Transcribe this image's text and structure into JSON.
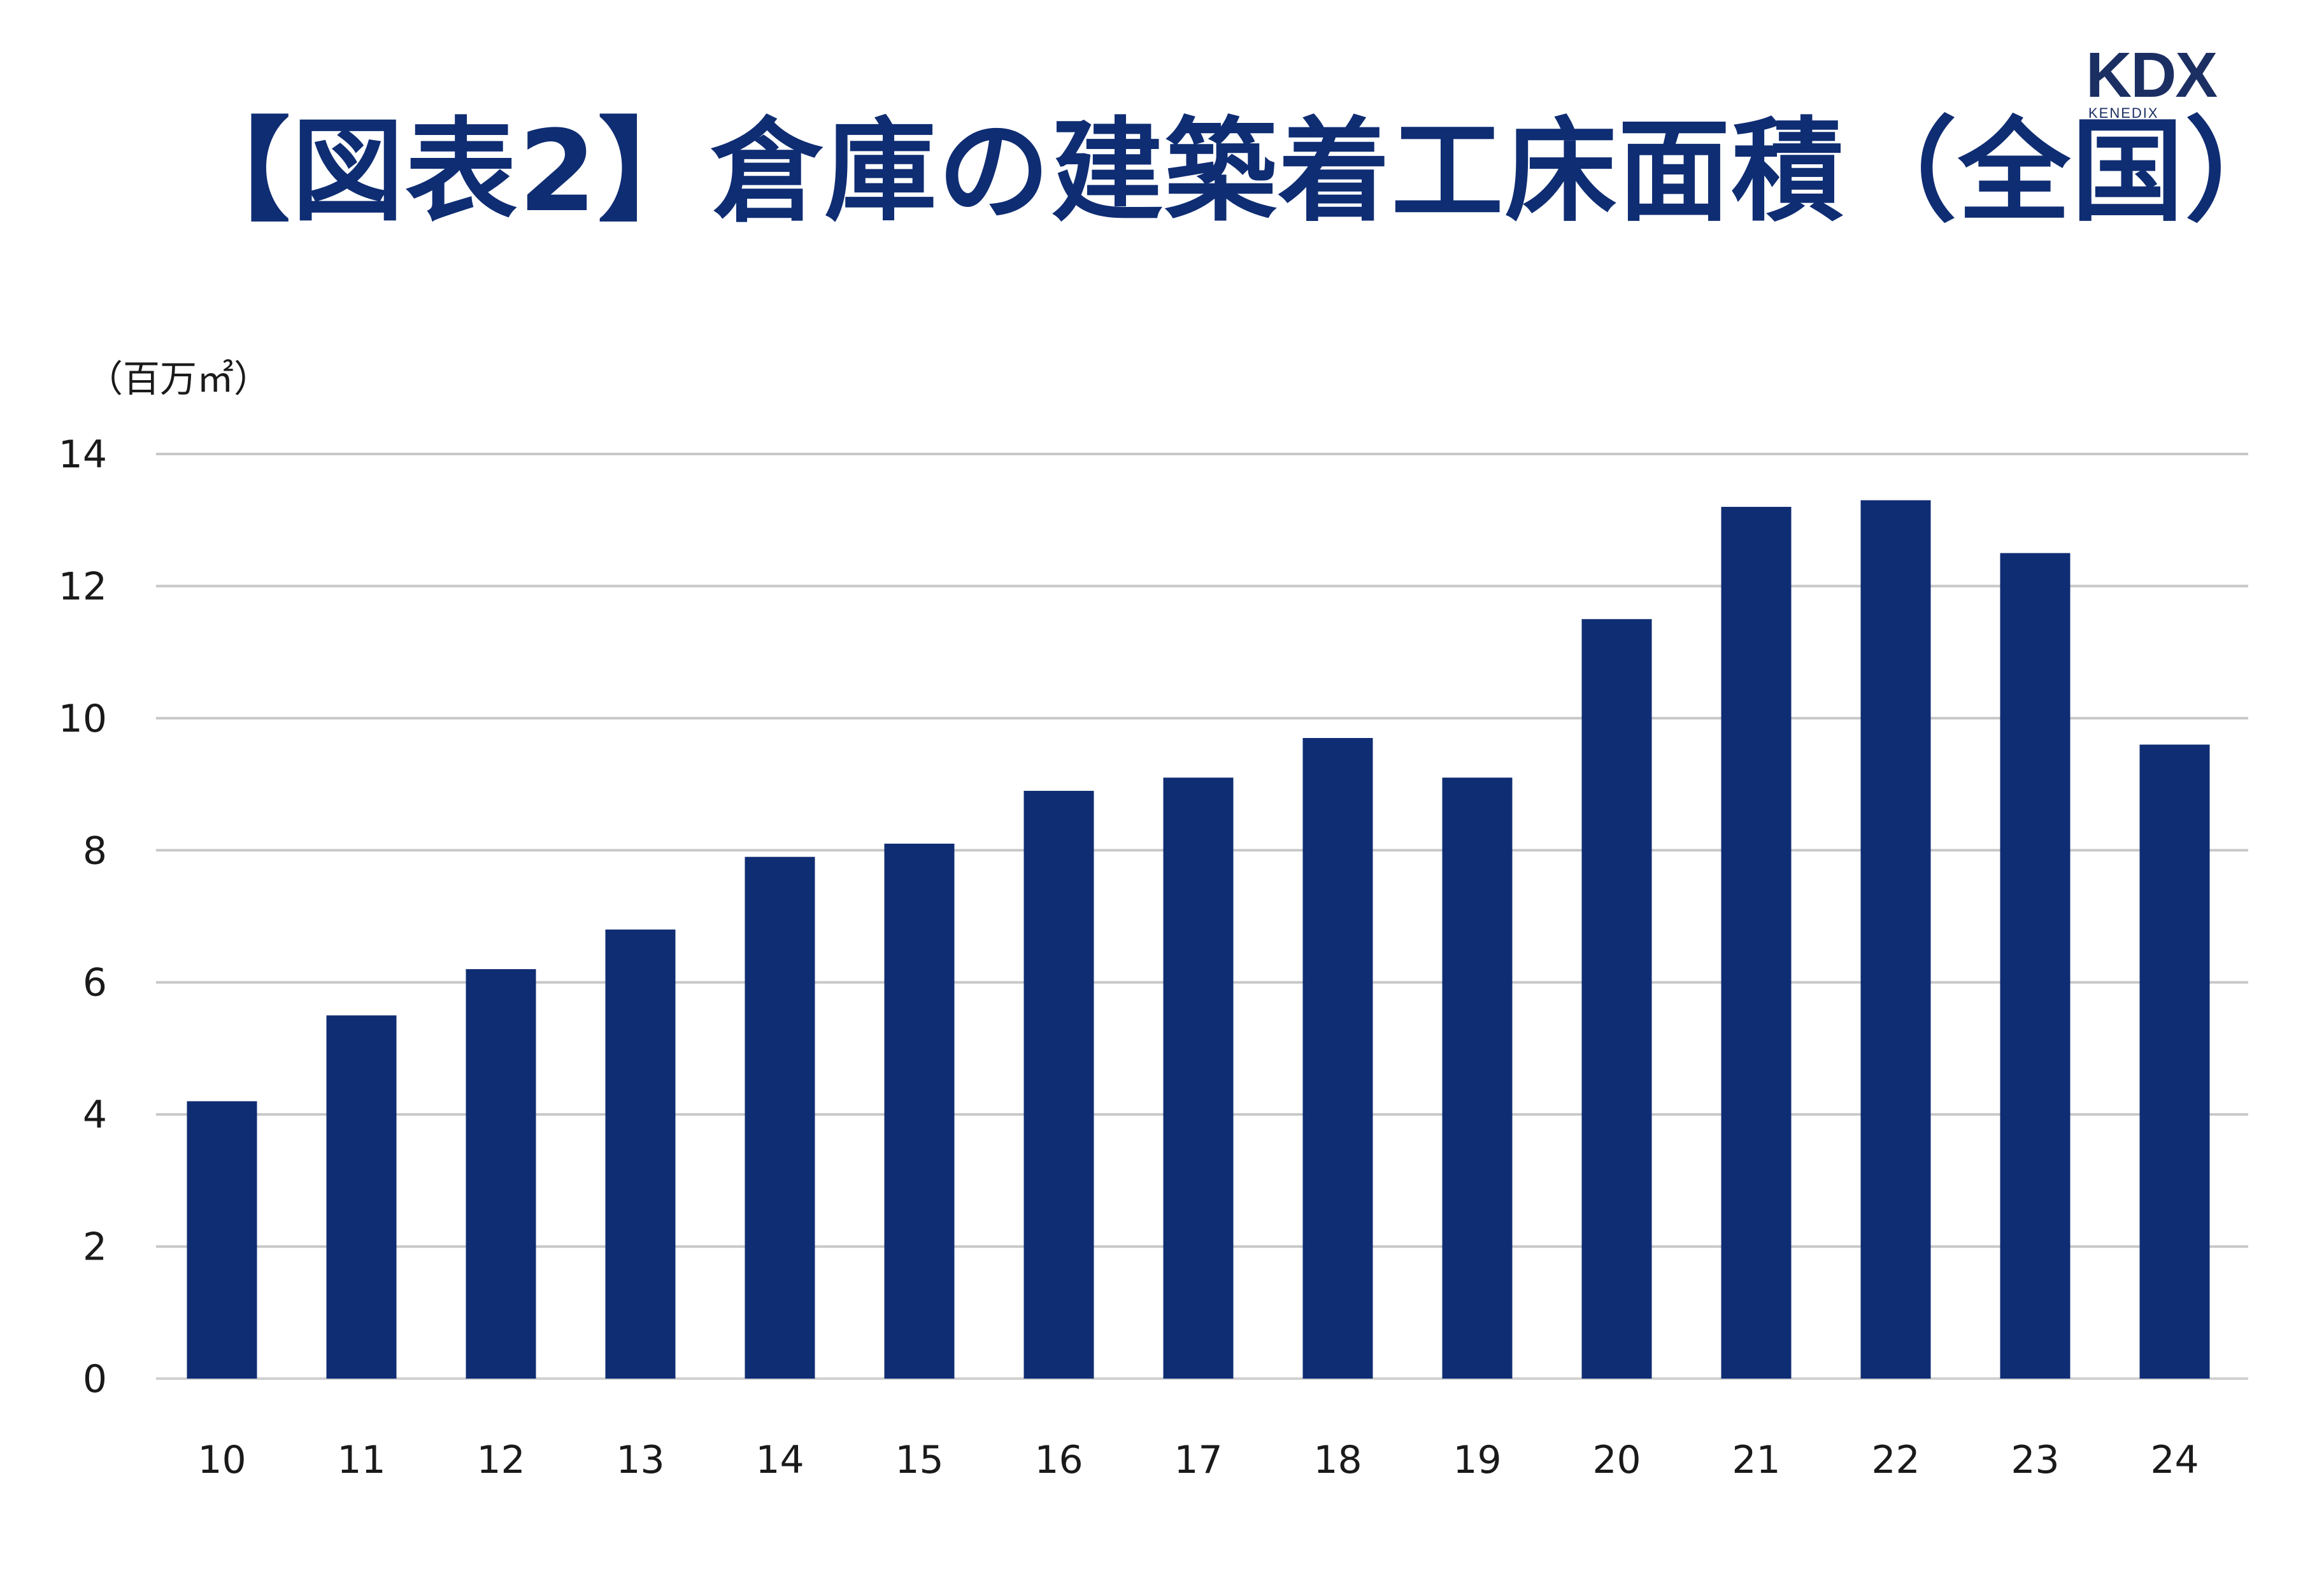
{
  "title": "【図表2】倉庫の建築着工床面積（全国）",
  "logo": {
    "main": "KDX",
    "sub": "KENEDIX"
  },
  "colors": {
    "bar": "#0f2d73",
    "title": "#0f2d73",
    "logo": "#1b2f63",
    "grid": "#c8c8c8"
  },
  "chart_data": {
    "type": "bar",
    "unit_label": "（百万㎡）",
    "categories": [
      "10",
      "11",
      "12",
      "13",
      "14",
      "15",
      "16",
      "17",
      "18",
      "19",
      "20",
      "21",
      "22",
      "23",
      "24"
    ],
    "values": [
      4.2,
      5.5,
      6.2,
      6.8,
      7.9,
      8.1,
      8.9,
      9.1,
      9.7,
      9.1,
      11.5,
      13.2,
      13.3,
      12.5,
      9.6
    ],
    "ylim": [
      0,
      14
    ],
    "yticks": [
      0,
      2,
      4,
      6,
      8,
      10,
      12,
      14
    ],
    "grid": true,
    "legend": "none"
  }
}
